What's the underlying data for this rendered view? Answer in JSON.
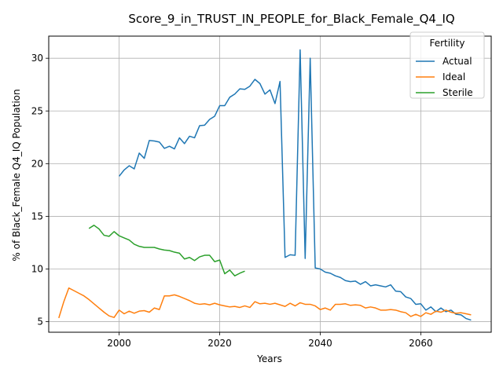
{
  "chart_data": {
    "type": "line",
    "title": "Score_9_in_TRUST_IN_PEOPLE_for_Black_Female_Q4_IQ",
    "xlabel": "Years",
    "ylabel": "% of Black_Female Q4_IQ Population",
    "xlim": [
      1986,
      2074
    ],
    "ylim": [
      4.0,
      32.1
    ],
    "xticks": [
      2000,
      2020,
      2040,
      2060
    ],
    "yticks": [
      5,
      10,
      15,
      20,
      25,
      30
    ],
    "grid": true,
    "legend": {
      "title": "Fertility",
      "position": "top-right"
    },
    "series": [
      {
        "name": "Actual",
        "color": "#1f77b4",
        "points": [
          [
            2000,
            18.8
          ],
          [
            2001,
            19.4
          ],
          [
            2002,
            19.8
          ],
          [
            2003,
            19.5
          ],
          [
            2004,
            21.0
          ],
          [
            2005,
            20.5
          ],
          [
            2006,
            22.2
          ],
          [
            2007,
            22.15
          ],
          [
            2008,
            22.05
          ],
          [
            2009,
            21.45
          ],
          [
            2010,
            21.65
          ],
          [
            2011,
            21.4
          ],
          [
            2012,
            22.45
          ],
          [
            2013,
            21.9
          ],
          [
            2014,
            22.6
          ],
          [
            2015,
            22.45
          ],
          [
            2016,
            23.6
          ],
          [
            2017,
            23.65
          ],
          [
            2018,
            24.2
          ],
          [
            2019,
            24.5
          ],
          [
            2020,
            25.5
          ],
          [
            2021,
            25.5
          ],
          [
            2022,
            26.3
          ],
          [
            2023,
            26.6
          ],
          [
            2024,
            27.1
          ],
          [
            2025,
            27.05
          ],
          [
            2026,
            27.35
          ],
          [
            2027,
            28.0
          ],
          [
            2028,
            27.6
          ],
          [
            2029,
            26.6
          ],
          [
            2030,
            27.0
          ],
          [
            2031,
            25.7
          ],
          [
            2032,
            27.8
          ],
          [
            2033,
            11.1
          ],
          [
            2034,
            11.35
          ],
          [
            2035,
            11.3
          ],
          [
            2036,
            30.8
          ],
          [
            2037,
            11.0
          ],
          [
            2038,
            30.0
          ],
          [
            2039,
            10.1
          ],
          [
            2040,
            10.0
          ],
          [
            2041,
            9.7
          ],
          [
            2042,
            9.6
          ],
          [
            2043,
            9.35
          ],
          [
            2044,
            9.2
          ],
          [
            2045,
            8.9
          ],
          [
            2046,
            8.8
          ],
          [
            2047,
            8.85
          ],
          [
            2048,
            8.55
          ],
          [
            2049,
            8.8
          ],
          [
            2050,
            8.4
          ],
          [
            2051,
            8.5
          ],
          [
            2052,
            8.4
          ],
          [
            2053,
            8.3
          ],
          [
            2054,
            8.5
          ],
          [
            2055,
            7.9
          ],
          [
            2056,
            7.85
          ],
          [
            2057,
            7.35
          ],
          [
            2058,
            7.2
          ],
          [
            2059,
            6.65
          ],
          [
            2060,
            6.7
          ],
          [
            2061,
            6.1
          ],
          [
            2062,
            6.4
          ],
          [
            2063,
            5.95
          ],
          [
            2064,
            6.3
          ],
          [
            2065,
            5.95
          ],
          [
            2066,
            6.1
          ],
          [
            2067,
            5.7
          ],
          [
            2068,
            5.65
          ],
          [
            2069,
            5.3
          ],
          [
            2070,
            5.15
          ]
        ]
      },
      {
        "name": "Ideal",
        "color": "#ff7f0e",
        "points": [
          [
            1988,
            5.35
          ],
          [
            1989,
            6.9
          ],
          [
            1990,
            8.2
          ],
          [
            1991,
            7.95
          ],
          [
            1992,
            7.7
          ],
          [
            1993,
            7.45
          ],
          [
            1994,
            7.1
          ],
          [
            1995,
            6.7
          ],
          [
            1996,
            6.3
          ],
          [
            1997,
            5.9
          ],
          [
            1998,
            5.55
          ],
          [
            1999,
            5.4
          ],
          [
            2000,
            6.1
          ],
          [
            2001,
            5.75
          ],
          [
            2002,
            6.0
          ],
          [
            2003,
            5.8
          ],
          [
            2004,
            6.0
          ],
          [
            2005,
            6.05
          ],
          [
            2006,
            5.9
          ],
          [
            2007,
            6.3
          ],
          [
            2008,
            6.15
          ],
          [
            2009,
            7.45
          ],
          [
            2010,
            7.45
          ],
          [
            2011,
            7.55
          ],
          [
            2012,
            7.4
          ],
          [
            2013,
            7.2
          ],
          [
            2014,
            7.0
          ],
          [
            2015,
            6.75
          ],
          [
            2016,
            6.65
          ],
          [
            2017,
            6.7
          ],
          [
            2018,
            6.6
          ],
          [
            2019,
            6.75
          ],
          [
            2020,
            6.6
          ],
          [
            2021,
            6.5
          ],
          [
            2022,
            6.4
          ],
          [
            2023,
            6.45
          ],
          [
            2024,
            6.35
          ],
          [
            2025,
            6.5
          ],
          [
            2026,
            6.35
          ],
          [
            2027,
            6.9
          ],
          [
            2028,
            6.7
          ],
          [
            2029,
            6.75
          ],
          [
            2030,
            6.65
          ],
          [
            2031,
            6.75
          ],
          [
            2032,
            6.6
          ],
          [
            2033,
            6.45
          ],
          [
            2034,
            6.75
          ],
          [
            2035,
            6.5
          ],
          [
            2036,
            6.8
          ],
          [
            2037,
            6.65
          ],
          [
            2038,
            6.65
          ],
          [
            2039,
            6.5
          ],
          [
            2040,
            6.15
          ],
          [
            2041,
            6.3
          ],
          [
            2042,
            6.1
          ],
          [
            2043,
            6.65
          ],
          [
            2044,
            6.65
          ],
          [
            2045,
            6.7
          ],
          [
            2046,
            6.55
          ],
          [
            2047,
            6.6
          ],
          [
            2048,
            6.55
          ],
          [
            2049,
            6.3
          ],
          [
            2050,
            6.4
          ],
          [
            2051,
            6.3
          ],
          [
            2052,
            6.1
          ],
          [
            2053,
            6.1
          ],
          [
            2054,
            6.15
          ],
          [
            2055,
            6.1
          ],
          [
            2056,
            5.95
          ],
          [
            2057,
            5.85
          ],
          [
            2058,
            5.5
          ],
          [
            2059,
            5.7
          ],
          [
            2060,
            5.5
          ],
          [
            2061,
            5.85
          ],
          [
            2062,
            5.7
          ],
          [
            2063,
            6.0
          ],
          [
            2064,
            5.9
          ],
          [
            2065,
            6.1
          ],
          [
            2066,
            5.9
          ],
          [
            2067,
            5.8
          ],
          [
            2068,
            5.85
          ],
          [
            2069,
            5.75
          ],
          [
            2070,
            5.65
          ]
        ]
      },
      {
        "name": "Sterile",
        "color": "#2ca02c",
        "points": [
          [
            1994,
            13.85
          ],
          [
            1995,
            14.15
          ],
          [
            1996,
            13.8
          ],
          [
            1997,
            13.2
          ],
          [
            1998,
            13.1
          ],
          [
            1999,
            13.55
          ],
          [
            2000,
            13.15
          ],
          [
            2001,
            12.95
          ],
          [
            2002,
            12.75
          ],
          [
            2003,
            12.35
          ],
          [
            2004,
            12.15
          ],
          [
            2005,
            12.05
          ],
          [
            2006,
            12.05
          ],
          [
            2007,
            12.05
          ],
          [
            2008,
            11.9
          ],
          [
            2009,
            11.8
          ],
          [
            2010,
            11.75
          ],
          [
            2011,
            11.6
          ],
          [
            2012,
            11.5
          ],
          [
            2013,
            10.95
          ],
          [
            2014,
            11.1
          ],
          [
            2015,
            10.8
          ],
          [
            2016,
            11.15
          ],
          [
            2017,
            11.3
          ],
          [
            2018,
            11.3
          ],
          [
            2019,
            10.7
          ],
          [
            2020,
            10.85
          ],
          [
            2021,
            9.55
          ],
          [
            2022,
            9.9
          ],
          [
            2023,
            9.35
          ],
          [
            2024,
            9.6
          ],
          [
            2025,
            9.8
          ]
        ]
      }
    ]
  }
}
